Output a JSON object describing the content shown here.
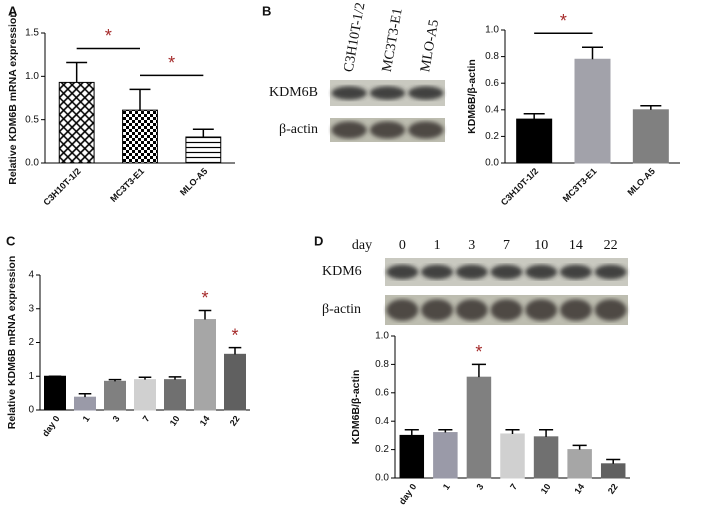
{
  "panel_labels": [
    "A",
    "B",
    "C",
    "D"
  ],
  "blots": [
    {
      "lanes": [
        "C3H10T-1/2",
        "MC3T3-E1",
        "MLO-A5"
      ],
      "rows": [
        "KDM6B",
        "β-actin"
      ]
    },
    {
      "header": "day",
      "lanes": [
        "0",
        "1",
        "3",
        "7",
        "10",
        "14",
        "22"
      ],
      "rows": [
        "KDM6",
        "β-actin"
      ]
    }
  ],
  "chart_data": [
    {
      "type": "bar",
      "y_label": "Relative KDM6B mRNA expression",
      "categories": [
        "C3H10T-1/2",
        "MC3T3-E1",
        "MLO-A5"
      ],
      "values": [
        0.93,
        0.61,
        0.3
      ],
      "errors": [
        0.23,
        0.24,
        0.09
      ],
      "patterns": [
        "crosshatch",
        "checker",
        "hlines"
      ],
      "colors": [
        "#000000",
        "#000000",
        "#000000"
      ],
      "ylim": [
        0,
        1.5
      ],
      "yticks": [
        {
          "value": 0,
          "label": "0.0"
        },
        0.5,
        {
          "value": 1,
          "label": "1.0"
        },
        1.5
      ],
      "annotations": [
        {
          "text": "*",
          "from": 0,
          "to": 1
        },
        {
          "text": "*",
          "from": 1,
          "to": 2
        }
      ]
    },
    {
      "type": "bar",
      "y_label": "KDM6B/β-actin",
      "categories": [
        "C3H10T-1/2",
        "MC3T3-E1",
        "MLO-A5"
      ],
      "values": [
        0.33,
        0.78,
        0.4
      ],
      "errors": [
        0.04,
        0.09,
        0.03
      ],
      "colors": [
        "#000000",
        "#a2a2aa",
        "#808080"
      ],
      "ylim": [
        0,
        1
      ],
      "yticks": [
        {
          "value": 0,
          "label": "0.0"
        },
        0.2,
        0.4,
        0.6,
        0.8,
        {
          "value": 1,
          "label": "1.0"
        }
      ],
      "annotations": [
        {
          "text": "*",
          "from": 0,
          "to": 1
        }
      ]
    },
    {
      "type": "bar",
      "y_label": "Relative KDM6B mRNA expression",
      "categories": [
        "day 0",
        "1",
        "3",
        "7",
        "10",
        "14",
        "22"
      ],
      "values": [
        1.0,
        0.38,
        0.85,
        0.9,
        0.9,
        2.68,
        1.65
      ],
      "errors": [
        0,
        0.1,
        0.05,
        0.07,
        0.08,
        0.27,
        0.2
      ],
      "colors": [
        "#000000",
        "#9a9aa8",
        "#808080",
        "#d0d0d0",
        "#707070",
        "#a6a6a6",
        "#606060"
      ],
      "ylim": [
        0,
        4
      ],
      "yticks": [
        0,
        1,
        2,
        3,
        4
      ],
      "annotations": [
        {
          "text": "*",
          "at": 5
        },
        {
          "text": "*",
          "at": 6
        }
      ]
    },
    {
      "type": "bar",
      "y_label": "KDM6B/β-actin",
      "categories": [
        "day 0",
        "1",
        "3",
        "7",
        "10",
        "14",
        "22"
      ],
      "values": [
        0.3,
        0.32,
        0.71,
        0.31,
        0.29,
        0.2,
        0.1
      ],
      "errors": [
        0.04,
        0.02,
        0.09,
        0.03,
        0.05,
        0.03,
        0.03
      ],
      "colors": [
        "#000000",
        "#9a9aa8",
        "#808080",
        "#d0d0d0",
        "#707070",
        "#a6a6a6",
        "#606060"
      ],
      "ylim": [
        0,
        1
      ],
      "yticks": [
        {
          "value": 0,
          "label": "0.0"
        },
        0.2,
        0.4,
        0.6,
        0.8,
        {
          "value": 1,
          "label": "1.0"
        }
      ],
      "annotations": [
        {
          "text": "*",
          "at": 2
        }
      ]
    }
  ]
}
